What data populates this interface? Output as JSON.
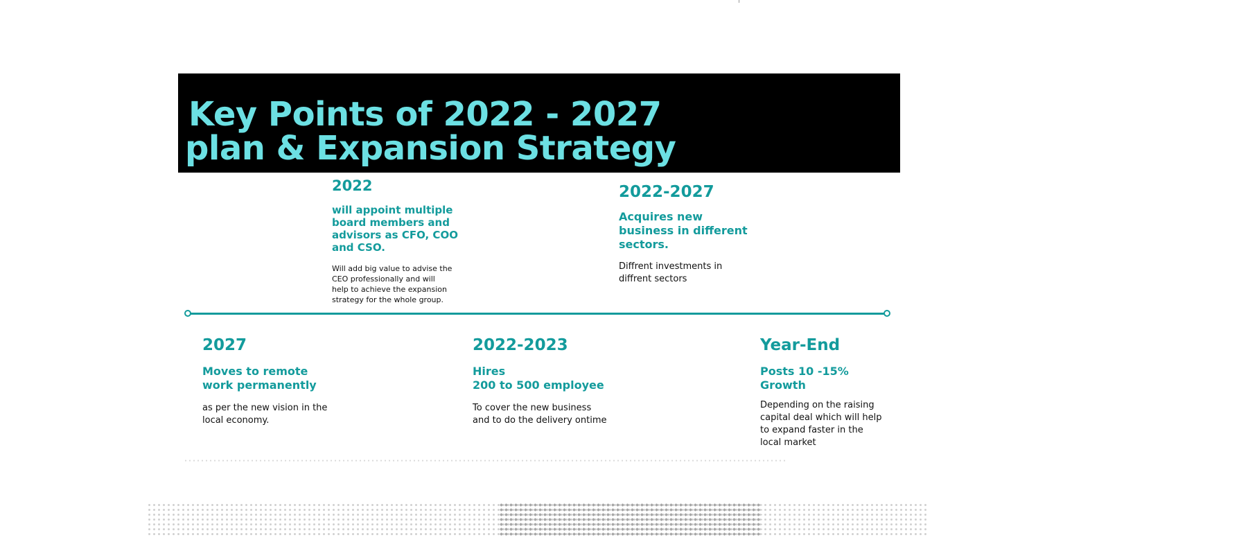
{
  "header": {
    "title_line1": "Key Points of 2022 - 2027",
    "title_line2": "plan & Expansion Strategy"
  },
  "top_items": [
    {
      "year": "2022",
      "heading": [
        "will appoint multiple",
        "board members and",
        "advisors as CFO, COO",
        "and CSO."
      ],
      "description": [
        "Will add big value to advise the",
        "CEO professionally  and will",
        "help to achieve the expansion",
        "strategy for the whole group."
      ]
    },
    {
      "year": "2022-2027",
      "heading": [
        "Acquires new",
        "business in different",
        "sectors."
      ],
      "description": [
        "Diffrent investments in",
        "diffrent sectors"
      ]
    }
  ],
  "bottom_items": [
    {
      "year": "2027",
      "heading": [
        "Moves to remote",
        "work permanently"
      ],
      "description": [
        "as per the new vision in the",
        "local economy."
      ]
    },
    {
      "year": "2022-2023",
      "heading": [
        "Hires",
        "200 to 500 employee"
      ],
      "description": [
        "To cover the new business",
        "and to do the delivery ontime"
      ]
    },
    {
      "year": "Year-End",
      "heading": [
        "Posts 10 -15%",
        "Growth"
      ],
      "description": [
        " Depending on the raising",
        "capital deal which will help",
        "to expand faster in the",
        "local market"
      ]
    }
  ],
  "colors": {
    "accent": "#139b9c",
    "title": "#6ce0e3",
    "header_bg": "#000000"
  }
}
